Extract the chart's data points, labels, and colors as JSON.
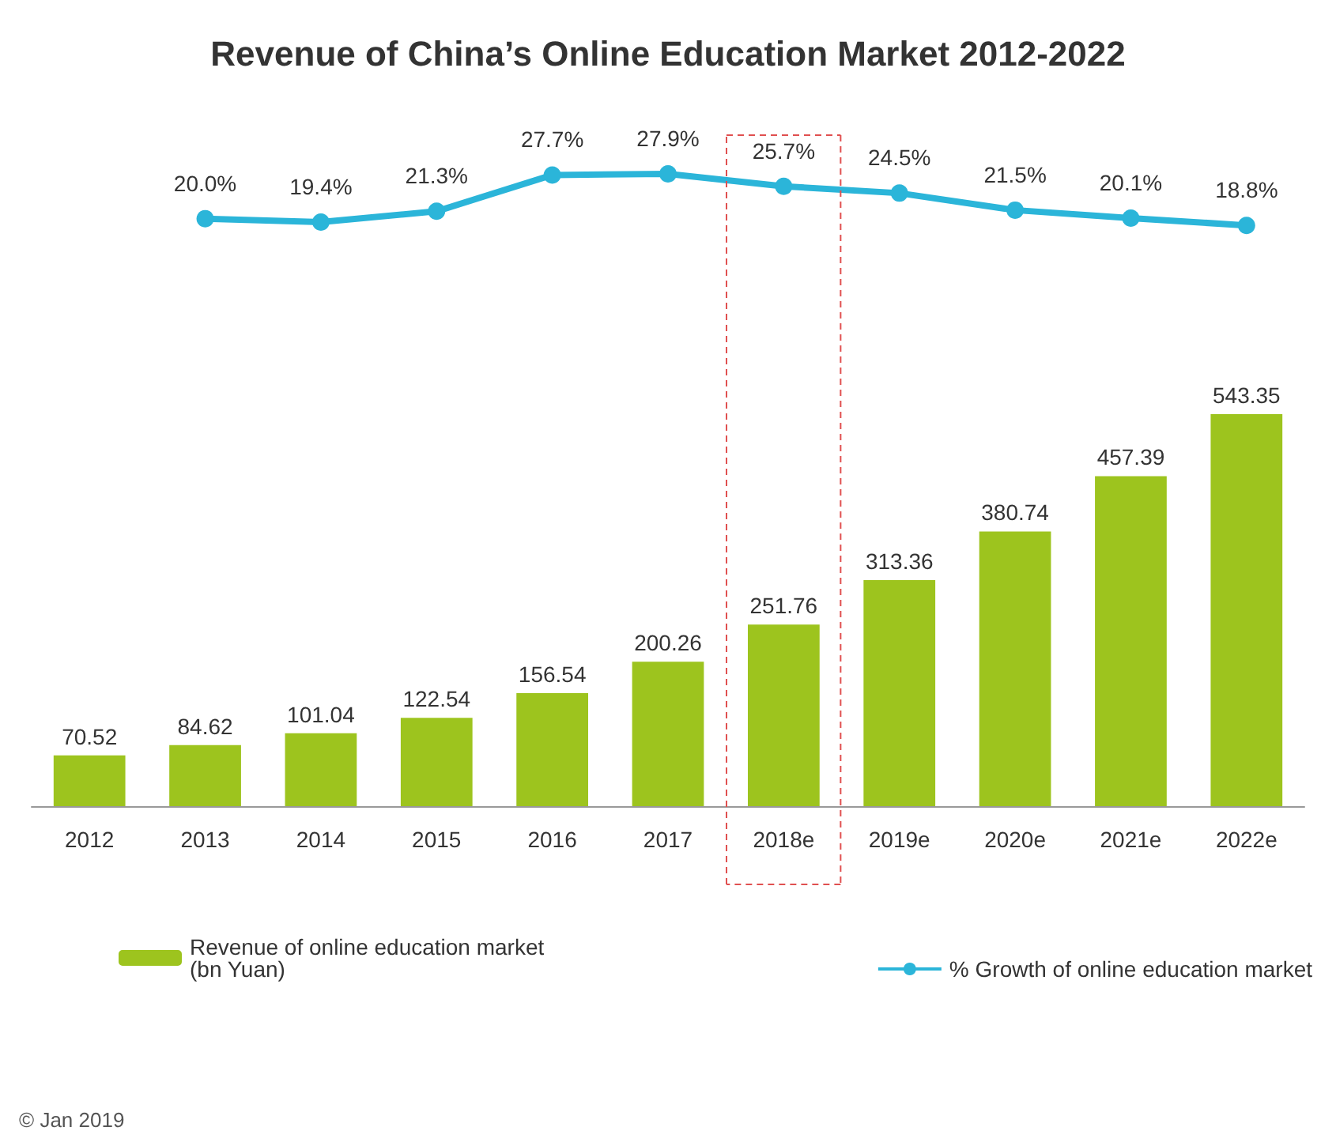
{
  "chart_data": [
    {
      "type": "line",
      "title": "Revenue of China’s Online Education Market 2012-2022",
      "categories": [
        null,
        null,
        null,
        null,
        null,
        null,
        null,
        null,
        null,
        null,
        null
      ],
      "series": [
        {
          "name": "% Growth of online education market",
          "color": "#2bb5d9",
          "values": [
            null,
            20.0,
            19.4,
            21.3,
            27.7,
            27.9,
            25.7,
            24.5,
            21.5,
            20.1,
            18.8
          ],
          "value_labels": [
            null,
            "20.0%",
            "19.4%",
            "21.3%",
            "27.7%",
            "27.9%",
            "25.7%",
            "24.5%",
            "21.5%",
            "20.1%",
            "18.8%"
          ]
        }
      ],
      "tick_labels": false,
      "data_labels": true,
      "grid": false,
      "legend": "bottom right",
      "marker": "circle",
      "line_style": "solid"
    },
    {
      "type": "bar",
      "categories": [
        "2012",
        "2013",
        "2014",
        "2015",
        "2016",
        "2017",
        "2018e",
        "2019e",
        "2020e",
        "2021e",
        "2022e"
      ],
      "series": [
        {
          "name": "Revenue of online education market\n(bn Yuan)",
          "color": "#9dc41e",
          "values": [
            70.52,
            84.62,
            101.04,
            122.54,
            156.54,
            200.26,
            251.76,
            313.36,
            380.74,
            457.39,
            543.35
          ]
        }
      ],
      "tick_labels": "x",
      "data_labels": true,
      "grid": false,
      "legend": "bottom left",
      "annotations": [
        "© Jan 2019"
      ]
    }
  ]
}
